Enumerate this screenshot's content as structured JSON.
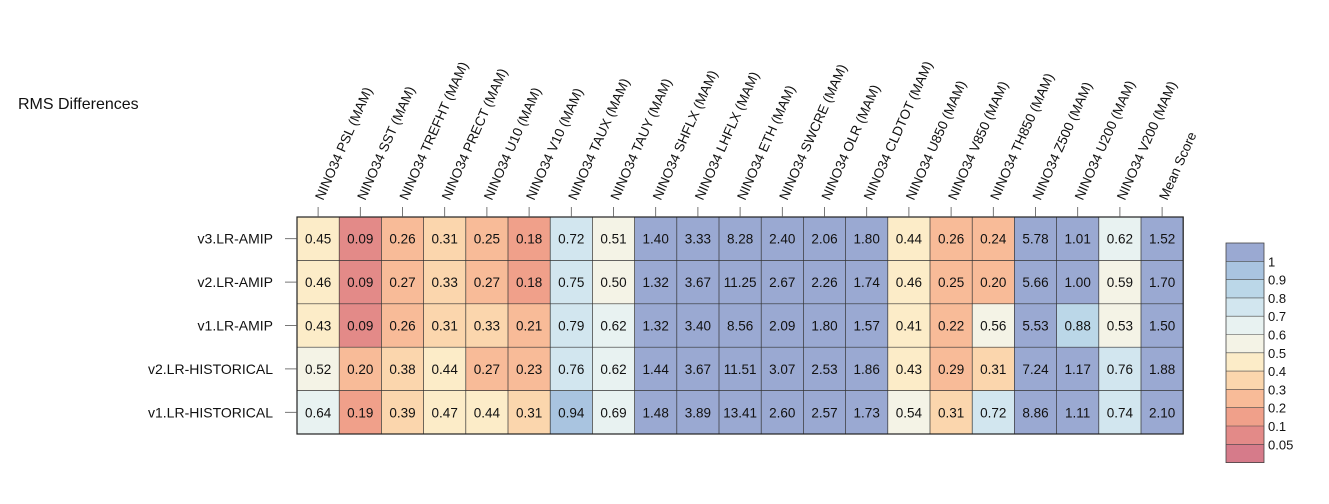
{
  "chart_data": {
    "type": "heatmap",
    "title": "RMS Differences",
    "columns": [
      "NINO34 PSL (MAM)",
      "NINO34 SST (MAM)",
      "NINO34 TREFHT (MAM)",
      "NINO34 PRECT (MAM)",
      "NINO34 U10 (MAM)",
      "NINO34 V10 (MAM)",
      "NINO34 TAUX (MAM)",
      "NINO34 TAUY (MAM)",
      "NINO34 SHFLX (MAM)",
      "NINO34 LHFLX (MAM)",
      "NINO34 ETH (MAM)",
      "NINO34 SWCRE (MAM)",
      "NINO34 OLR (MAM)",
      "NINO34 CLDTOT (MAM)",
      "NINO34 U850 (MAM)",
      "NINO34 V850 (MAM)",
      "NINO34 TH850 (MAM)",
      "NINO34 Z500 (MAM)",
      "NINO34 U200 (MAM)",
      "NINO34 V200 (MAM)",
      "Mean Score"
    ],
    "rows": [
      "v3.LR-AMIP",
      "v2.LR-AMIP",
      "v1.LR-AMIP",
      "v2.LR-HISTORICAL",
      "v1.LR-HISTORICAL"
    ],
    "values": [
      [
        "0.45",
        "0.09",
        "0.26",
        "0.31",
        "0.25",
        "0.18",
        "0.72",
        "0.51",
        "1.40",
        "3.33",
        "8.28",
        "2.40",
        "2.06",
        "1.80",
        "0.44",
        "0.26",
        "0.24",
        "5.78",
        "1.01",
        "0.62",
        "1.52"
      ],
      [
        "0.46",
        "0.09",
        "0.27",
        "0.33",
        "0.27",
        "0.18",
        "0.75",
        "0.50",
        "1.32",
        "3.67",
        "11.25",
        "2.67",
        "2.26",
        "1.74",
        "0.46",
        "0.25",
        "0.20",
        "5.66",
        "1.00",
        "0.59",
        "1.70"
      ],
      [
        "0.43",
        "0.09",
        "0.26",
        "0.31",
        "0.33",
        "0.21",
        "0.79",
        "0.62",
        "1.32",
        "3.40",
        "8.56",
        "2.09",
        "1.80",
        "1.57",
        "0.41",
        "0.22",
        "0.56",
        "5.53",
        "0.88",
        "0.53",
        "1.50"
      ],
      [
        "0.52",
        "0.20",
        "0.38",
        "0.44",
        "0.27",
        "0.23",
        "0.76",
        "0.62",
        "1.44",
        "3.67",
        "11.51",
        "3.07",
        "2.53",
        "1.86",
        "0.43",
        "0.29",
        "0.31",
        "7.24",
        "1.17",
        "0.76",
        "1.88"
      ],
      [
        "0.64",
        "0.19",
        "0.39",
        "0.47",
        "0.44",
        "0.31",
        "0.94",
        "0.69",
        "1.48",
        "3.89",
        "13.41",
        "2.60",
        "2.57",
        "1.73",
        "0.54",
        "0.31",
        "0.72",
        "8.86",
        "1.11",
        "0.74",
        "2.10"
      ]
    ],
    "colorbar": {
      "ticks": [
        "1",
        "0.9",
        "0.8",
        "0.7",
        "0.6",
        "0.5",
        "0.4",
        "0.3",
        "0.2",
        "0.1",
        "0.05"
      ],
      "colors": [
        "#9aa9d2",
        "#a9c4e0",
        "#bbd7e8",
        "#d2e6ef",
        "#e8f2f1",
        "#f4f3e6",
        "#fcecc8",
        "#fbd6ad",
        "#f8bb98",
        "#f0a08a",
        "#e38a88",
        "#d67b8a"
      ],
      "bounds": [
        0.05,
        0.1,
        0.2,
        0.3,
        0.4,
        0.5,
        0.6,
        0.7,
        0.8,
        0.9,
        1
      ],
      "placement": "right"
    }
  }
}
